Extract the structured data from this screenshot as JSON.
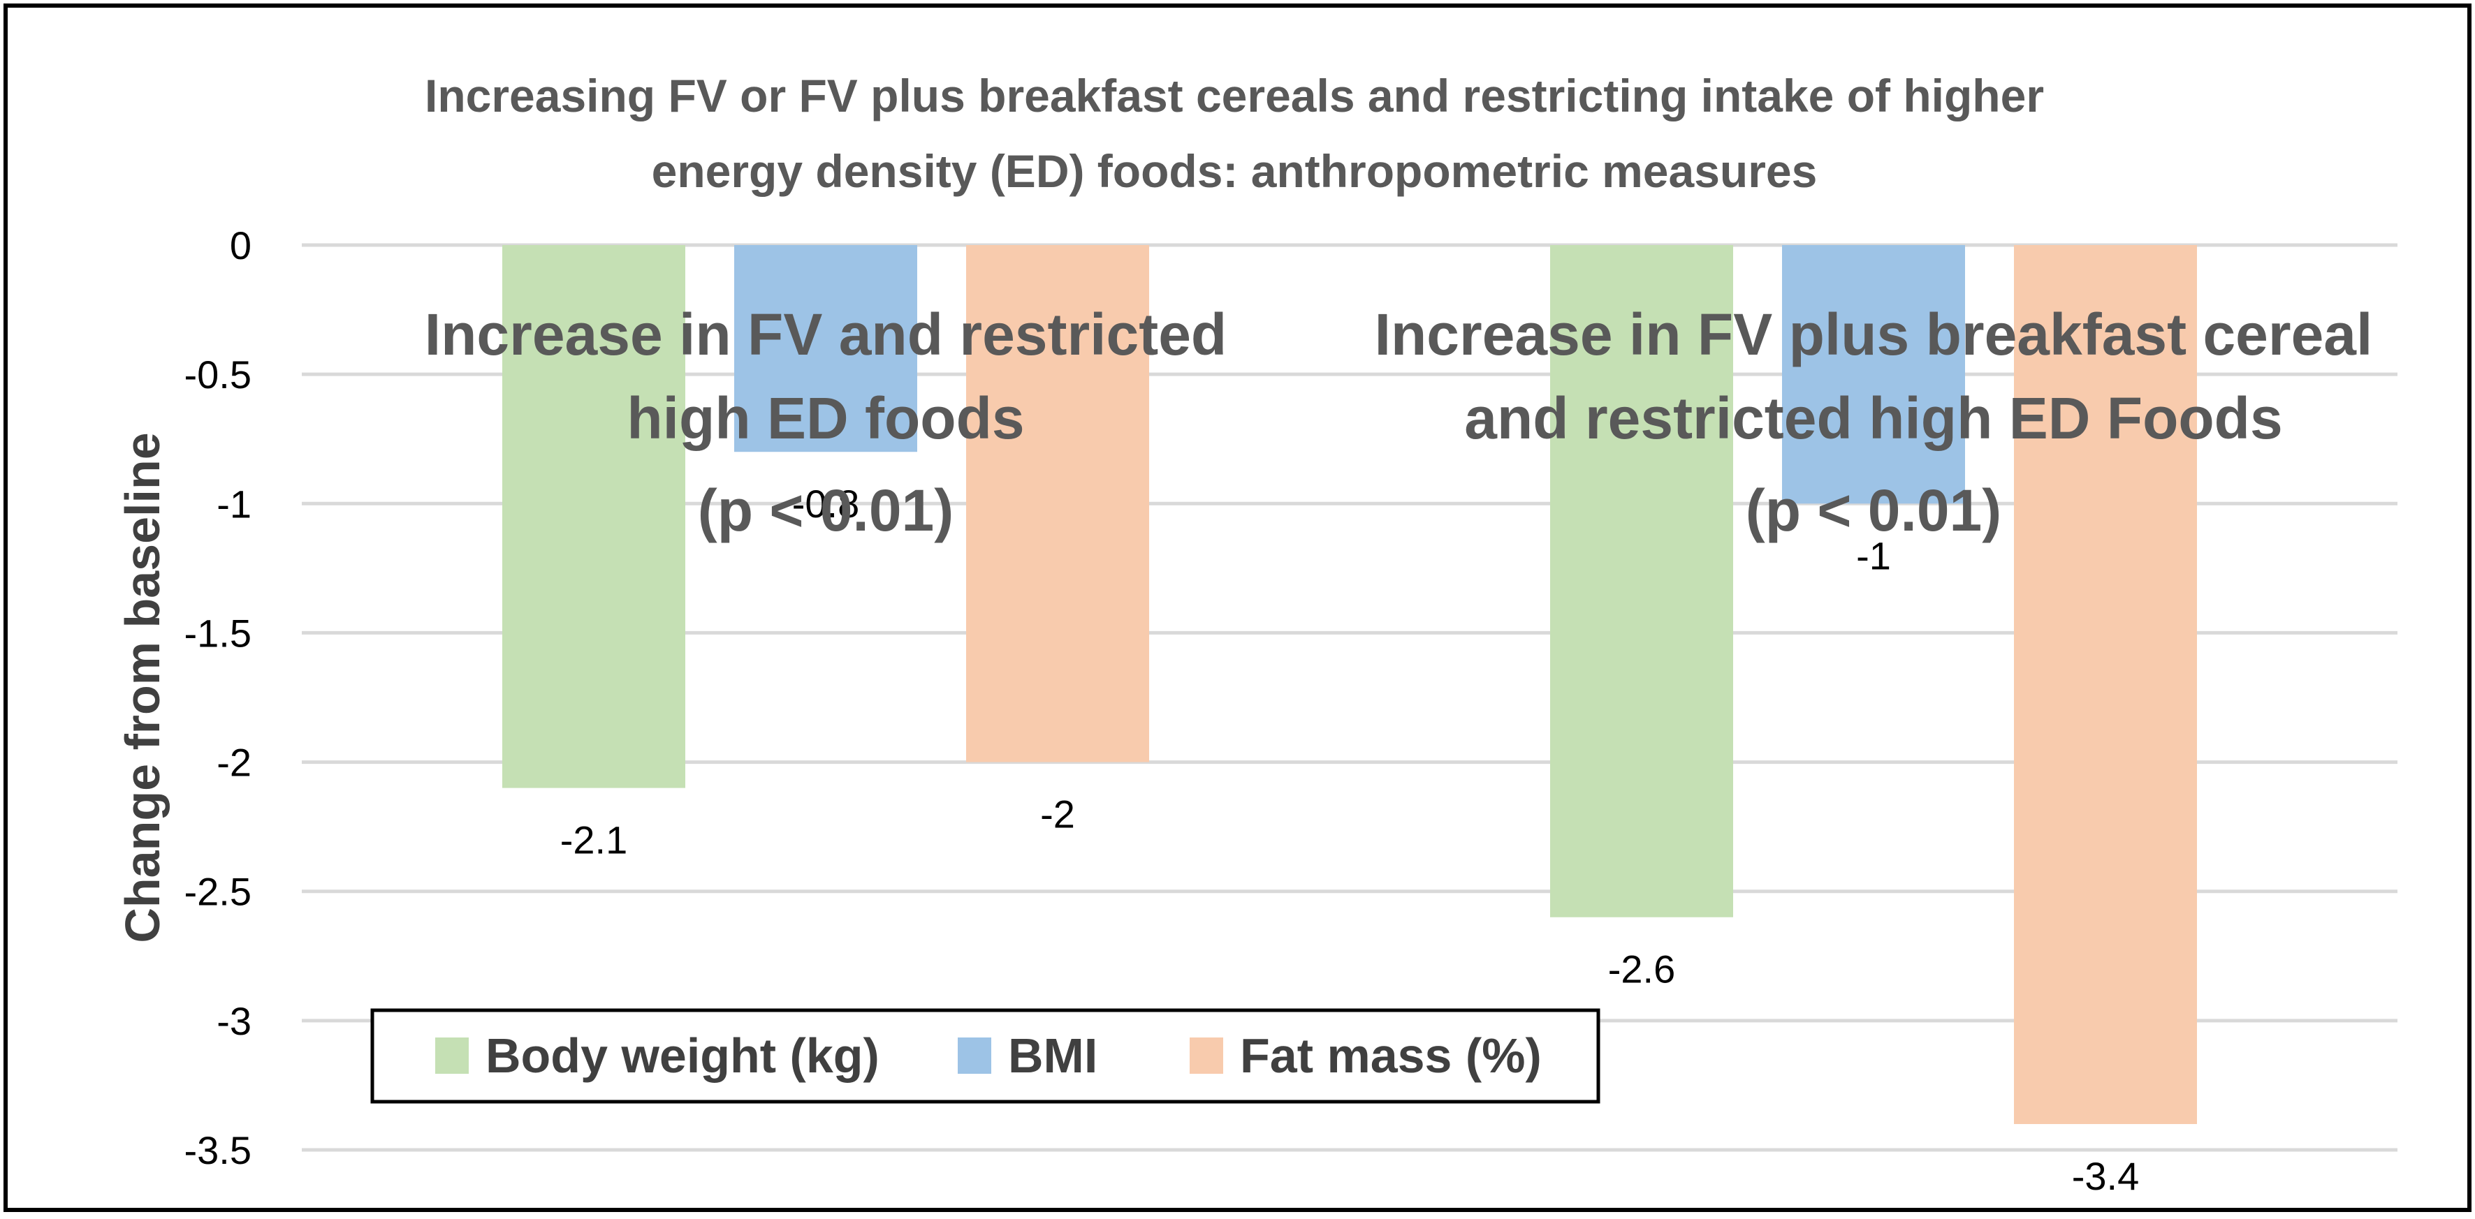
{
  "chart_data": {
    "type": "bar",
    "title": [
      "Increasing FV or FV plus breakfast cereals and restricting intake of higher",
      "energy density (ED) foods: anthropometric measures"
    ],
    "ylabel": "Change from baseline",
    "xlabel": "",
    "ylim": [
      -3.5,
      0
    ],
    "yticks": [
      0,
      -0.5,
      -1,
      -1.5,
      -2,
      -2.5,
      -3,
      -3.5
    ],
    "ytick_labels": [
      "0",
      "-0.5",
      "-1",
      "-1.5",
      "-2",
      "-2.5",
      "-3",
      "-3.5"
    ],
    "grid": true,
    "legend_position": "bottom-left",
    "categories": [
      [
        "Increase in FV and restricted",
        "high ED foods",
        "(p < 0.01)"
      ],
      [
        "Increase in FV plus breakfast cereal",
        "and restricted high ED Foods",
        "(p < 0.01)"
      ]
    ],
    "series": [
      {
        "name": "Body weight (kg)",
        "color": "#c5e0b4",
        "values": [
          -2.1,
          -2.6
        ],
        "labels": [
          "-2.1",
          "-2.6"
        ]
      },
      {
        "name": "BMI",
        "color": "#9dc3e6",
        "values": [
          -0.8,
          -1
        ],
        "labels": [
          "-0.8",
          "-1"
        ]
      },
      {
        "name": "Fat mass (%)",
        "color": "#f8cbad",
        "values": [
          -2,
          -3.4
        ],
        "labels": [
          "-2",
          "-3.4"
        ]
      }
    ],
    "colors": {
      "grid": "#d9d9d9",
      "frame": "#000000",
      "title": "#595959"
    }
  }
}
